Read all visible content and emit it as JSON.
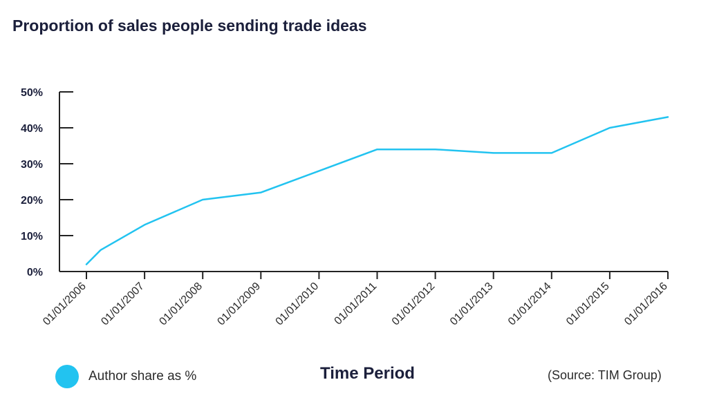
{
  "chart_data": {
    "type": "line",
    "title": "Proportion of sales people sending trade ideas",
    "xlabel": "Time Period",
    "ylabel": "",
    "source": "(Source: TIM Group)",
    "ylim": [
      0,
      50
    ],
    "y_ticks": [
      "0%",
      "10%",
      "20%",
      "30%",
      "40%",
      "50%"
    ],
    "categories": [
      "01/01/2006",
      "01/01/2007",
      "01/01/2008",
      "01/01/2009",
      "01/01/2010",
      "01/01/2011",
      "01/01/2012",
      "01/01/2013",
      "01/01/2014",
      "01/01/2015",
      "01/01/2016"
    ],
    "series": [
      {
        "name": "Author share as %",
        "color": "#22c3f0",
        "points": [
          {
            "x": "01/01/2006",
            "y": 2
          },
          {
            "x": "01/04/2006",
            "y": 6
          },
          {
            "x": "01/01/2007",
            "y": 13
          },
          {
            "x": "01/01/2008",
            "y": 20
          },
          {
            "x": "01/01/2009",
            "y": 22
          },
          {
            "x": "01/01/2010",
            "y": 28
          },
          {
            "x": "01/01/2011",
            "y": 34
          },
          {
            "x": "01/01/2012",
            "y": 34
          },
          {
            "x": "01/01/2013",
            "y": 33
          },
          {
            "x": "01/01/2014",
            "y": 33
          },
          {
            "x": "01/01/2015",
            "y": 40
          },
          {
            "x": "01/01/2016",
            "y": 43
          }
        ]
      }
    ],
    "legend_position": "bottom-left",
    "grid": false
  }
}
